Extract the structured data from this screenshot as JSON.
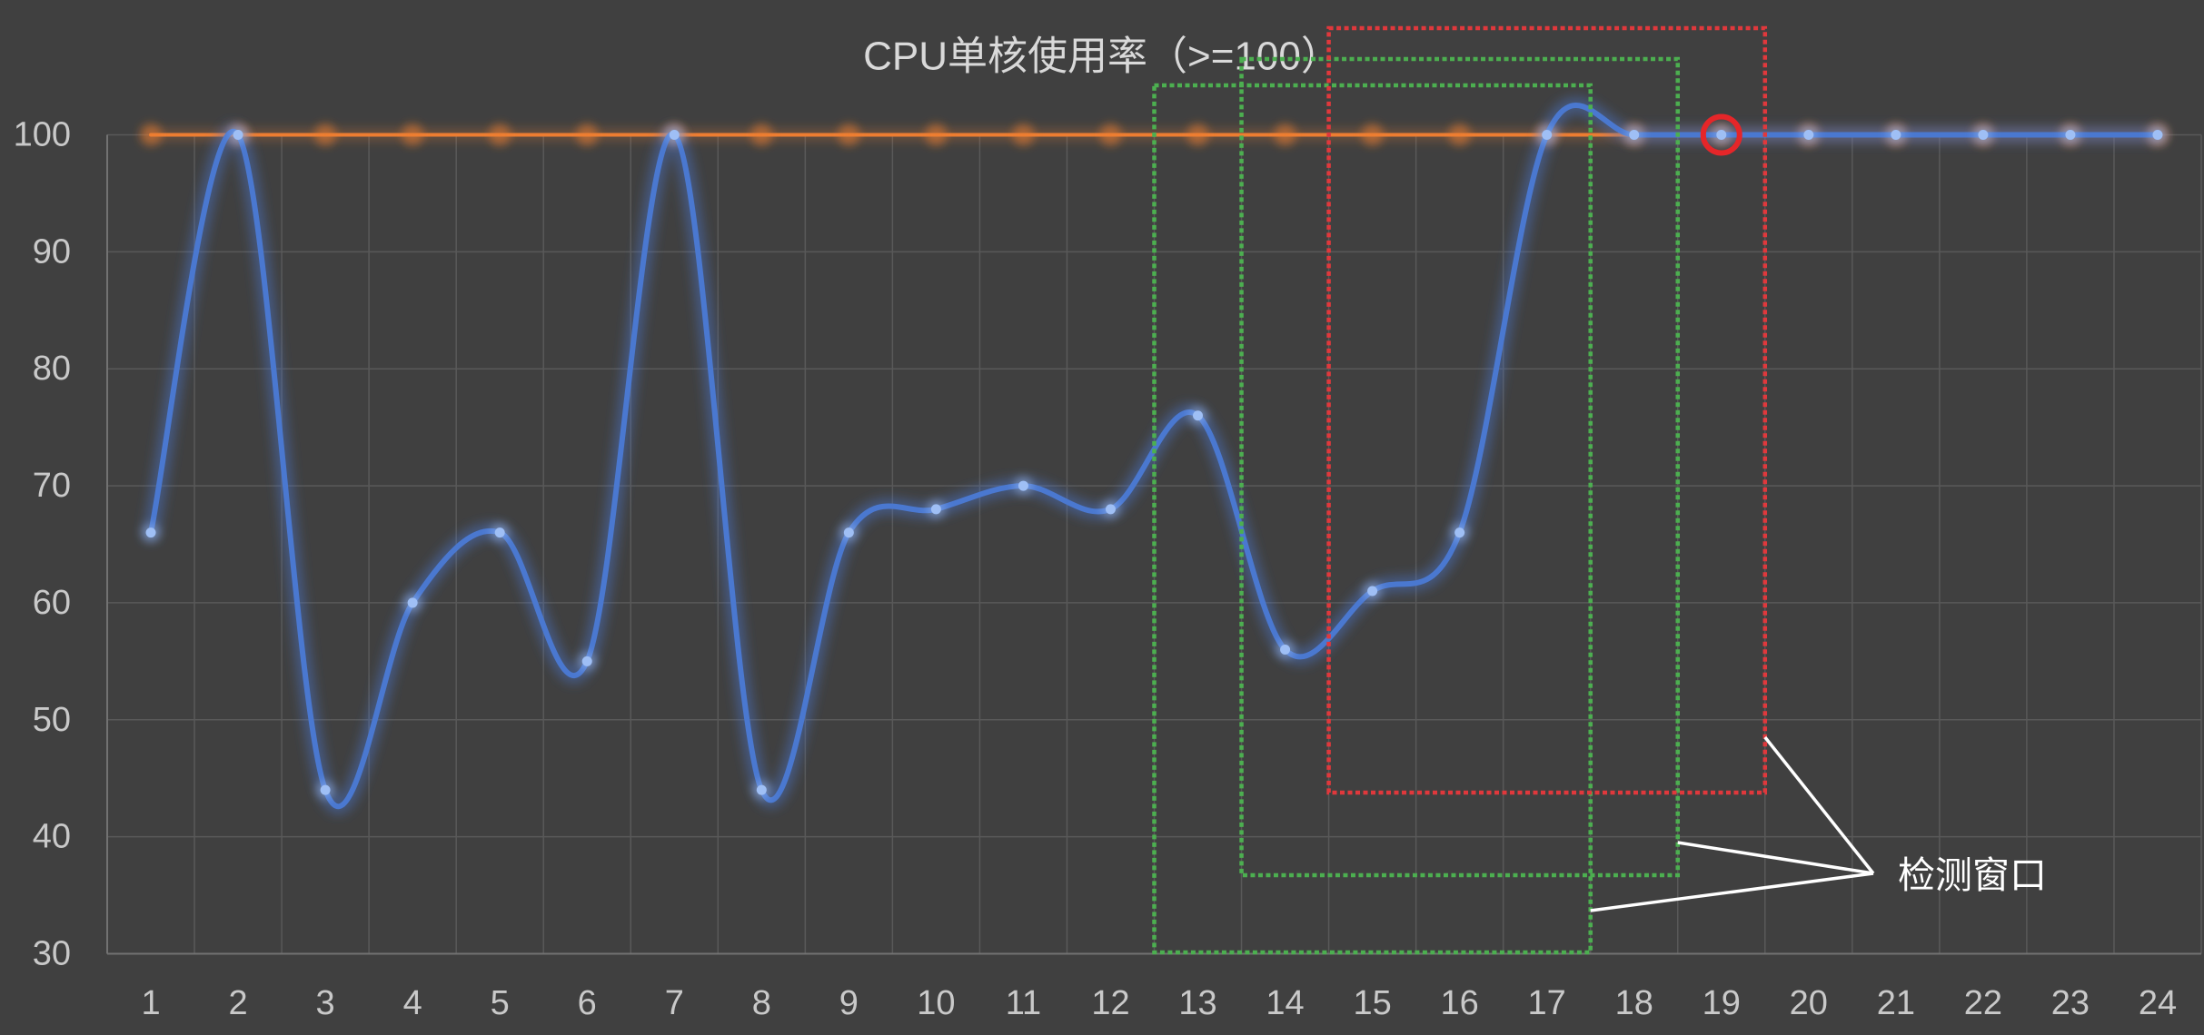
{
  "chart_data": {
    "type": "line",
    "title": "CPU单核使用率（>=100）",
    "categories": [
      "1",
      "2",
      "3",
      "4",
      "5",
      "6",
      "7",
      "8",
      "9",
      "10",
      "11",
      "12",
      "13",
      "14",
      "15",
      "16",
      "17",
      "18",
      "19",
      "20",
      "21",
      "22",
      "23",
      "24"
    ],
    "yticks": [
      "30",
      "40",
      "50",
      "60",
      "70",
      "80",
      "90",
      "100"
    ],
    "ylim": [
      30,
      100
    ],
    "grid": true,
    "smooth": true,
    "legend": "none",
    "series": [
      {
        "values": [
          66,
          100,
          44,
          60,
          66,
          55,
          100,
          44,
          66,
          68,
          70,
          68,
          76,
          56,
          61,
          66,
          100,
          100,
          100,
          100,
          100,
          100,
          100,
          100
        ],
        "line_color": "#4a78d0",
        "marker_color": "#9fbff5"
      },
      {
        "values": [
          100,
          100,
          100,
          100,
          100,
          100,
          100,
          100,
          100,
          100,
          100,
          100,
          100,
          100,
          100,
          100,
          100,
          100,
          100,
          100,
          100,
          100,
          100,
          100
        ],
        "line_color": "#ed7d31",
        "marker_color": "#ed7d31"
      }
    ],
    "annotations": {
      "windows": [
        {
          "from": 13,
          "to": 17,
          "color": "#4caf50",
          "style": "dotted"
        },
        {
          "from": 14,
          "to": 18,
          "color": "#4caf50",
          "style": "dotted"
        },
        {
          "from": 15,
          "to": 19,
          "color": "#e0383c",
          "style": "dotted"
        }
      ],
      "highlight_point": {
        "category": 19,
        "value": 100,
        "color": "#e52629",
        "shape": "circle"
      },
      "label": "检测窗口",
      "label_color": "#ffffff"
    }
  }
}
